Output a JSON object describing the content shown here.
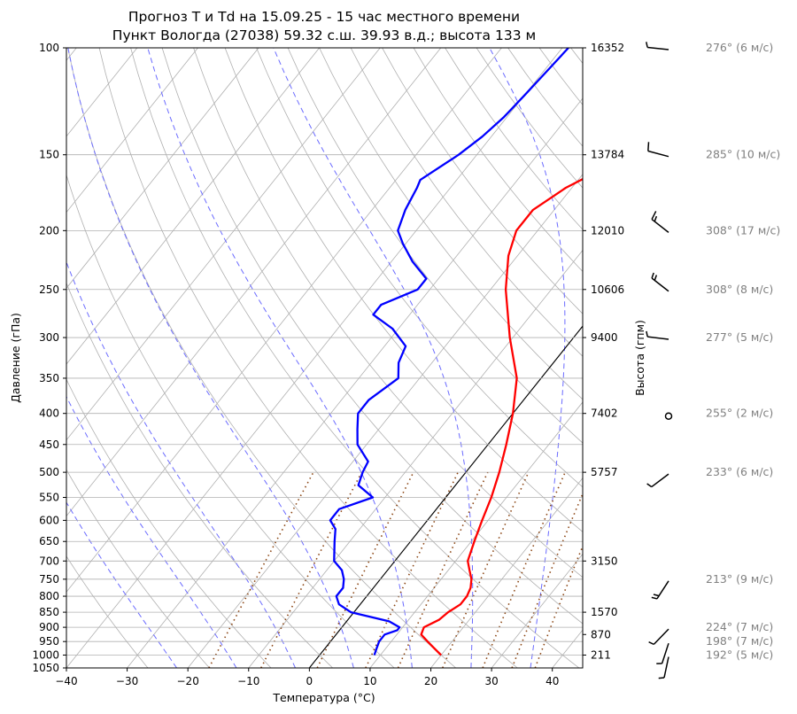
{
  "chart_data": {
    "type": "line",
    "title_line1": "Прогноз T и Td на 15.09.25 - 15 час местного времени",
    "title_line2": "Пункт Вологда (27038) 59.32 с.ш. 39.93 в.д.; высота 133 м",
    "xlabel": "Температура (°C)",
    "ylabel": "Давление (гПа)",
    "ylabel_right": "Высота (гпм)",
    "xlim": [
      -40,
      45
    ],
    "ylim": [
      1050,
      100
    ],
    "y_scale": "log",
    "grid": true,
    "x_ticks": [
      "−40",
      "−30",
      "−20",
      "−10",
      "0",
      "10",
      "20",
      "30",
      "40"
    ],
    "y_ticks": [
      100,
      150,
      200,
      250,
      300,
      350,
      400,
      450,
      500,
      550,
      600,
      650,
      700,
      750,
      800,
      850,
      900,
      950,
      1000,
      1050
    ],
    "height_ticks": [
      {
        "p": 100,
        "label": "16352"
      },
      {
        "p": 150,
        "label": "13784"
      },
      {
        "p": 200,
        "label": "12010"
      },
      {
        "p": 250,
        "label": "10606"
      },
      {
        "p": 300,
        "label": "9400"
      },
      {
        "p": 400,
        "label": "7402"
      },
      {
        "p": 500,
        "label": "5757"
      },
      {
        "p": 700,
        "label": "3150"
      },
      {
        "p": 850,
        "label": "1570"
      },
      {
        "p": 925,
        "label": "870"
      },
      {
        "p": 1000,
        "label": "211"
      }
    ],
    "series": [
      {
        "role": "temperature",
        "color": "#ff0000",
        "points": [
          [
            1000,
            20.0
          ],
          [
            975,
            18.0
          ],
          [
            950,
            16.0
          ],
          [
            925,
            14.0
          ],
          [
            900,
            13.5
          ],
          [
            875,
            15.0
          ],
          [
            850,
            15.5
          ],
          [
            825,
            16.5
          ],
          [
            800,
            16.5
          ],
          [
            775,
            16.0
          ],
          [
            750,
            15.0
          ],
          [
            725,
            13.5
          ],
          [
            700,
            12.0
          ],
          [
            650,
            10.5
          ],
          [
            600,
            9.0
          ],
          [
            550,
            7.5
          ],
          [
            500,
            5.5
          ],
          [
            450,
            3.0
          ],
          [
            400,
            0.0
          ],
          [
            350,
            -4.0
          ],
          [
            300,
            -10.5
          ],
          [
            250,
            -17.5
          ],
          [
            220,
            -21.5
          ],
          [
            200,
            -23.5
          ],
          [
            185,
            -23.5
          ],
          [
            170,
            -21.0
          ],
          [
            160,
            -18.0
          ],
          [
            150,
            -13.5
          ],
          [
            140,
            -10.0
          ],
          [
            130,
            -7.0
          ],
          [
            120,
            -4.0
          ],
          [
            110,
            -1.0
          ],
          [
            100,
            2.0
          ]
        ]
      },
      {
        "role": "dewpoint",
        "color": "#0000ff",
        "points": [
          [
            1000,
            9.0
          ],
          [
            975,
            8.5
          ],
          [
            950,
            8.0
          ],
          [
            925,
            8.0
          ],
          [
            910,
            9.5
          ],
          [
            900,
            9.5
          ],
          [
            880,
            7.0
          ],
          [
            850,
            -0.5
          ],
          [
            825,
            -3.5
          ],
          [
            800,
            -5.0
          ],
          [
            775,
            -5.0
          ],
          [
            750,
            -6.0
          ],
          [
            725,
            -7.5
          ],
          [
            700,
            -10.0
          ],
          [
            650,
            -12.5
          ],
          [
            620,
            -14.0
          ],
          [
            600,
            -16.0
          ],
          [
            575,
            -16.0
          ],
          [
            550,
            -12.0
          ],
          [
            525,
            -16.0
          ],
          [
            500,
            -17.0
          ],
          [
            480,
            -17.5
          ],
          [
            450,
            -21.5
          ],
          [
            425,
            -23.5
          ],
          [
            400,
            -25.5
          ],
          [
            380,
            -25.5
          ],
          [
            350,
            -23.5
          ],
          [
            330,
            -25.5
          ],
          [
            310,
            -26.5
          ],
          [
            290,
            -31.0
          ],
          [
            275,
            -36.0
          ],
          [
            265,
            -36.0
          ],
          [
            250,
            -32.0
          ],
          [
            240,
            -32.0
          ],
          [
            225,
            -36.5
          ],
          [
            210,
            -40.5
          ],
          [
            200,
            -43.0
          ],
          [
            185,
            -44.5
          ],
          [
            170,
            -45.5
          ],
          [
            165,
            -46.0
          ],
          [
            150,
            -43.0
          ],
          [
            140,
            -41.5
          ],
          [
            130,
            -40.5
          ],
          [
            120,
            -40.0
          ],
          [
            110,
            -39.5
          ],
          [
            100,
            -39.0
          ]
        ]
      }
    ],
    "wind_barbs": [
      {
        "p": 1000,
        "dir": 192,
        "speed": 5,
        "label": "192° (5 м/с)"
      },
      {
        "p": 950,
        "dir": 198,
        "speed": 7,
        "label": "198° (7 м/с)"
      },
      {
        "p": 900,
        "dir": 224,
        "speed": 7,
        "label": "224° (7 м/с)"
      },
      {
        "p": 750,
        "dir": 213,
        "speed": 9,
        "label": "213° (9 м/с)"
      },
      {
        "p": 500,
        "dir": 233,
        "speed": 6,
        "label": "233° (6 м/с)"
      },
      {
        "p": 400,
        "dir": 255,
        "speed": 2,
        "label": "255° (2 м/с)"
      },
      {
        "p": 300,
        "dir": 277,
        "speed": 5,
        "label": "277° (5 м/с)"
      },
      {
        "p": 250,
        "dir": 308,
        "speed": 8,
        "label": "308° (8 м/с)"
      },
      {
        "p": 200,
        "dir": 308,
        "speed": 17,
        "label": "308° (17 м/с)"
      },
      {
        "p": 150,
        "dir": 285,
        "speed": 10,
        "label": "285° (10 м/с)"
      },
      {
        "p": 100,
        "dir": 276,
        "speed": 6,
        "label": "276° (6 м/с)"
      }
    ],
    "background_lines": {
      "isotherm_skew_color": "#b0b0b0",
      "dry_adiabat_color": "#b0b0b0",
      "moist_adiabat_color": "#6b6bff",
      "mixing_ratio_color": "#8b4513",
      "lcl_line_color": "#000000"
    }
  }
}
